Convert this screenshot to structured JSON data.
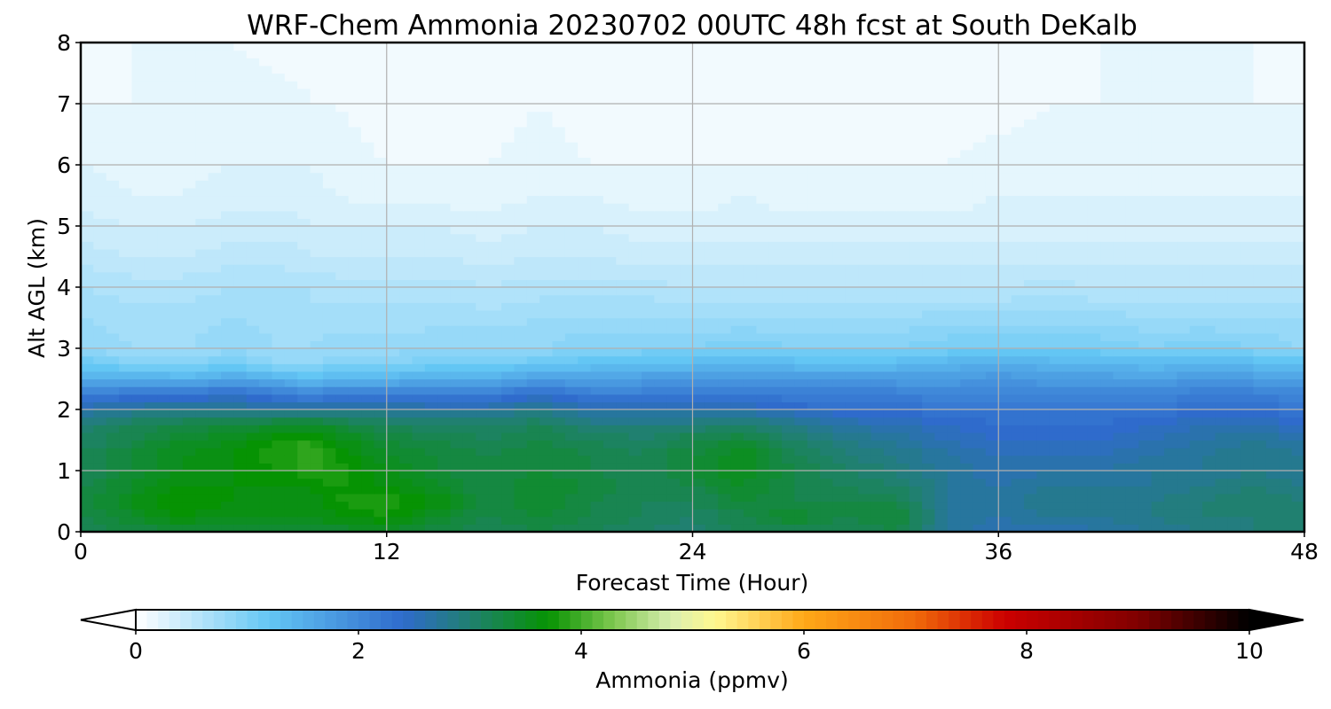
{
  "chart_data": {
    "type": "heatmap",
    "title": "WRF-Chem Ammonia  20230702 00UTC 48h fcst at South DeKalb",
    "xlabel": "Forecast Time (Hour)",
    "ylabel": "Alt AGL (km)",
    "xlim": [
      0,
      48
    ],
    "ylim": [
      0,
      8
    ],
    "xticks": [
      "0",
      "12",
      "24",
      "36",
      "48"
    ],
    "yticks": [
      "0",
      "1",
      "2",
      "3",
      "4",
      "5",
      "6",
      "7",
      "8"
    ],
    "grid": true,
    "x": [
      0,
      2,
      4,
      6,
      8,
      9,
      10,
      12,
      14,
      16,
      18,
      20,
      22,
      24,
      26,
      28,
      30,
      32,
      34,
      36,
      38,
      40,
      42,
      44,
      46,
      48
    ],
    "y": [
      0,
      0.25,
      0.5,
      0.75,
      1.0,
      1.25,
      1.5,
      1.75,
      2.0,
      2.25,
      2.5,
      2.75,
      3.0,
      3.5,
      4.0,
      4.5,
      5.0,
      5.5,
      6.0,
      7.0,
      8.0
    ],
    "z": [
      [
        3.2,
        3.3,
        3.4,
        3.4,
        3.4,
        3.4,
        3.4,
        3.5,
        3.3,
        3.2,
        3.3,
        3.2,
        3.1,
        3.0,
        3.2,
        3.2,
        3.2,
        3.3,
        2.8,
        2.6,
        2.6,
        2.7,
        2.8,
        2.9,
        3.0,
        3.0
      ],
      [
        3.3,
        3.5,
        3.7,
        3.6,
        3.6,
        3.6,
        3.7,
        3.8,
        3.5,
        3.3,
        3.4,
        3.3,
        3.2,
        3.1,
        3.3,
        3.5,
        3.3,
        3.4,
        2.8,
        2.7,
        2.8,
        2.8,
        2.9,
        3.0,
        3.0,
        3.0
      ],
      [
        3.3,
        3.6,
        3.8,
        3.7,
        3.6,
        3.6,
        3.8,
        3.9,
        3.7,
        3.3,
        3.5,
        3.3,
        3.2,
        3.2,
        3.4,
        3.3,
        3.3,
        3.3,
        2.8,
        2.7,
        2.9,
        2.8,
        2.9,
        3.0,
        3.1,
        3.0
      ],
      [
        3.3,
        3.5,
        3.7,
        3.7,
        3.7,
        3.7,
        3.8,
        3.7,
        3.5,
        3.3,
        3.5,
        3.4,
        3.2,
        3.3,
        3.5,
        3.3,
        3.2,
        3.1,
        2.8,
        2.7,
        2.8,
        2.8,
        2.8,
        2.9,
        3.0,
        2.9
      ],
      [
        3.2,
        3.4,
        3.6,
        3.7,
        3.8,
        3.9,
        3.9,
        3.6,
        3.4,
        3.3,
        3.4,
        3.3,
        3.2,
        3.4,
        3.6,
        3.3,
        3.1,
        3.0,
        2.8,
        2.6,
        2.7,
        2.7,
        2.8,
        2.8,
        2.9,
        2.8
      ],
      [
        3.2,
        3.4,
        3.6,
        3.7,
        3.9,
        4.0,
        3.8,
        3.5,
        3.4,
        3.3,
        3.4,
        3.3,
        3.2,
        3.4,
        3.6,
        3.2,
        3.0,
        2.9,
        2.7,
        2.6,
        2.6,
        2.6,
        2.7,
        2.8,
        2.9,
        2.8
      ],
      [
        3.1,
        3.3,
        3.5,
        3.6,
        3.8,
        3.9,
        3.7,
        3.4,
        3.3,
        3.2,
        3.3,
        3.2,
        3.1,
        3.3,
        3.4,
        3.1,
        2.9,
        2.8,
        2.6,
        2.5,
        2.5,
        2.5,
        2.6,
        2.7,
        2.8,
        2.7
      ],
      [
        3.0,
        3.2,
        3.3,
        3.4,
        3.5,
        3.5,
        3.4,
        3.2,
        3.1,
        3.1,
        3.2,
        3.0,
        3.0,
        3.0,
        3.1,
        2.9,
        2.7,
        2.6,
        2.5,
        2.4,
        2.4,
        2.4,
        2.5,
        2.6,
        2.6,
        2.5
      ],
      [
        2.7,
        2.8,
        2.9,
        2.8,
        2.8,
        2.8,
        2.8,
        2.8,
        2.7,
        2.7,
        2.9,
        2.6,
        2.6,
        2.6,
        2.6,
        2.5,
        2.4,
        2.4,
        2.3,
        2.3,
        2.3,
        2.3,
        2.3,
        2.4,
        2.4,
        2.3
      ],
      [
        2.2,
        2.3,
        2.3,
        2.5,
        2.2,
        2.1,
        2.2,
        2.2,
        2.2,
        2.2,
        2.5,
        2.2,
        2.2,
        2.3,
        2.3,
        2.2,
        2.2,
        2.2,
        2.1,
        2.1,
        2.1,
        2.1,
        2.1,
        2.2,
        2.2,
        2.1
      ],
      [
        1.6,
        1.6,
        1.5,
        1.7,
        1.5,
        1.4,
        1.5,
        1.5,
        1.6,
        1.6,
        1.8,
        1.7,
        1.8,
        1.8,
        1.9,
        1.8,
        1.8,
        1.8,
        1.8,
        1.9,
        1.8,
        1.8,
        1.7,
        1.9,
        1.8,
        1.7
      ],
      [
        1.2,
        1.0,
        1.0,
        1.1,
        0.9,
        0.9,
        1.0,
        1.0,
        1.1,
        1.1,
        1.2,
        1.3,
        1.4,
        1.4,
        1.5,
        1.4,
        1.4,
        1.4,
        1.5,
        1.6,
        1.5,
        1.5,
        1.4,
        1.5,
        1.4,
        1.3
      ],
      [
        0.9,
        0.8,
        0.8,
        0.85,
        0.8,
        0.8,
        0.85,
        0.85,
        0.9,
        0.9,
        0.9,
        1.0,
        1.0,
        1.0,
        1.1,
        1.0,
        1.0,
        1.0,
        1.1,
        1.1,
        1.1,
        1.1,
        1.0,
        1.1,
        1.0,
        0.9
      ],
      [
        0.8,
        0.75,
        0.75,
        0.8,
        0.75,
        0.7,
        0.75,
        0.75,
        0.75,
        0.75,
        0.8,
        0.8,
        0.8,
        0.8,
        0.8,
        0.8,
        0.8,
        0.8,
        0.85,
        0.85,
        0.85,
        0.85,
        0.8,
        0.8,
        0.8,
        0.8
      ],
      [
        0.7,
        0.65,
        0.65,
        0.7,
        0.7,
        0.7,
        0.65,
        0.65,
        0.65,
        0.6,
        0.65,
        0.65,
        0.65,
        0.6,
        0.6,
        0.6,
        0.6,
        0.6,
        0.6,
        0.6,
        0.65,
        0.6,
        0.6,
        0.6,
        0.6,
        0.6
      ],
      [
        0.55,
        0.5,
        0.5,
        0.55,
        0.55,
        0.5,
        0.5,
        0.5,
        0.5,
        0.45,
        0.5,
        0.5,
        0.45,
        0.45,
        0.45,
        0.45,
        0.45,
        0.45,
        0.45,
        0.45,
        0.45,
        0.45,
        0.45,
        0.45,
        0.45,
        0.45
      ],
      [
        0.45,
        0.4,
        0.4,
        0.45,
        0.45,
        0.4,
        0.4,
        0.4,
        0.4,
        0.35,
        0.4,
        0.4,
        0.35,
        0.35,
        0.35,
        0.35,
        0.35,
        0.35,
        0.35,
        0.35,
        0.35,
        0.35,
        0.35,
        0.35,
        0.35,
        0.35
      ],
      [
        0.35,
        0.3,
        0.3,
        0.35,
        0.35,
        0.35,
        0.3,
        0.25,
        0.25,
        0.25,
        0.3,
        0.3,
        0.25,
        0.25,
        0.3,
        0.25,
        0.25,
        0.25,
        0.25,
        0.3,
        0.3,
        0.3,
        0.3,
        0.3,
        0.3,
        0.3
      ],
      [
        0.3,
        0.25,
        0.25,
        0.3,
        0.3,
        0.3,
        0.25,
        0.2,
        0.2,
        0.2,
        0.25,
        0.2,
        0.2,
        0.2,
        0.2,
        0.2,
        0.2,
        0.2,
        0.2,
        0.25,
        0.25,
        0.25,
        0.25,
        0.25,
        0.25,
        0.25
      ],
      [
        0.2,
        0.2,
        0.2,
        0.25,
        0.25,
        0.2,
        0.2,
        0.15,
        0.15,
        0.15,
        0.2,
        0.15,
        0.15,
        0.15,
        0.15,
        0.15,
        0.15,
        0.15,
        0.15,
        0.15,
        0.2,
        0.2,
        0.2,
        0.2,
        0.2,
        0.2
      ],
      [
        0.15,
        0.2,
        0.2,
        0.2,
        0.15,
        0.15,
        0.15,
        0.1,
        0.1,
        0.1,
        0.15,
        0.1,
        0.1,
        0.1,
        0.1,
        0.1,
        0.1,
        0.1,
        0.1,
        0.15,
        0.15,
        0.2,
        0.2,
        0.2,
        0.2,
        0.15
      ]
    ],
    "colorbar": {
      "label": "Ammonia  (ppmv)",
      "vmin": 0,
      "vmax": 10,
      "levels": 100,
      "extend": "both",
      "ticks": [
        "0",
        "2",
        "4",
        "6",
        "8",
        "10"
      ],
      "colors": [
        {
          "v": 0.0,
          "c": "#ffffff"
        },
        {
          "v": 1.2,
          "c": "#63c6f4"
        },
        {
          "v": 2.4,
          "c": "#2f6bcc"
        },
        {
          "v": 3.0,
          "c": "#208070"
        },
        {
          "v": 3.7,
          "c": "#069303"
        },
        {
          "v": 4.3,
          "c": "#80c850"
        },
        {
          "v": 4.8,
          "c": "#d8eeb0"
        },
        {
          "v": 5.2,
          "c": "#fff890"
        },
        {
          "v": 6.0,
          "c": "#ffa818"
        },
        {
          "v": 7.0,
          "c": "#f06a0a"
        },
        {
          "v": 7.8,
          "c": "#cc0000"
        },
        {
          "v": 9.0,
          "c": "#800000"
        },
        {
          "v": 10.0,
          "c": "#000000"
        }
      ]
    }
  }
}
